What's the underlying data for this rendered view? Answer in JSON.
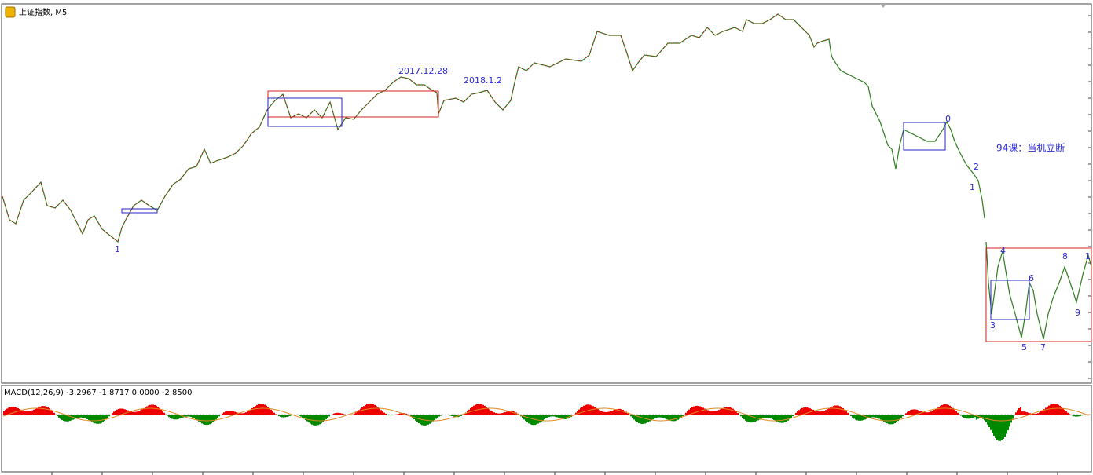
{
  "window": {
    "title": "上证指数, M5"
  },
  "annotations": {
    "dates": [
      "2017.12.28",
      "2018.1.2"
    ],
    "lesson": "94课：当机立断",
    "wave_labels": [
      "1",
      "0",
      "2",
      "1",
      "4",
      "3",
      "5",
      "6",
      "7",
      "8",
      "9",
      "1"
    ]
  },
  "macd": {
    "label": "MACD(12,26,9) -3.2967 -1.8717 0.0000 -2.8500"
  }
}
